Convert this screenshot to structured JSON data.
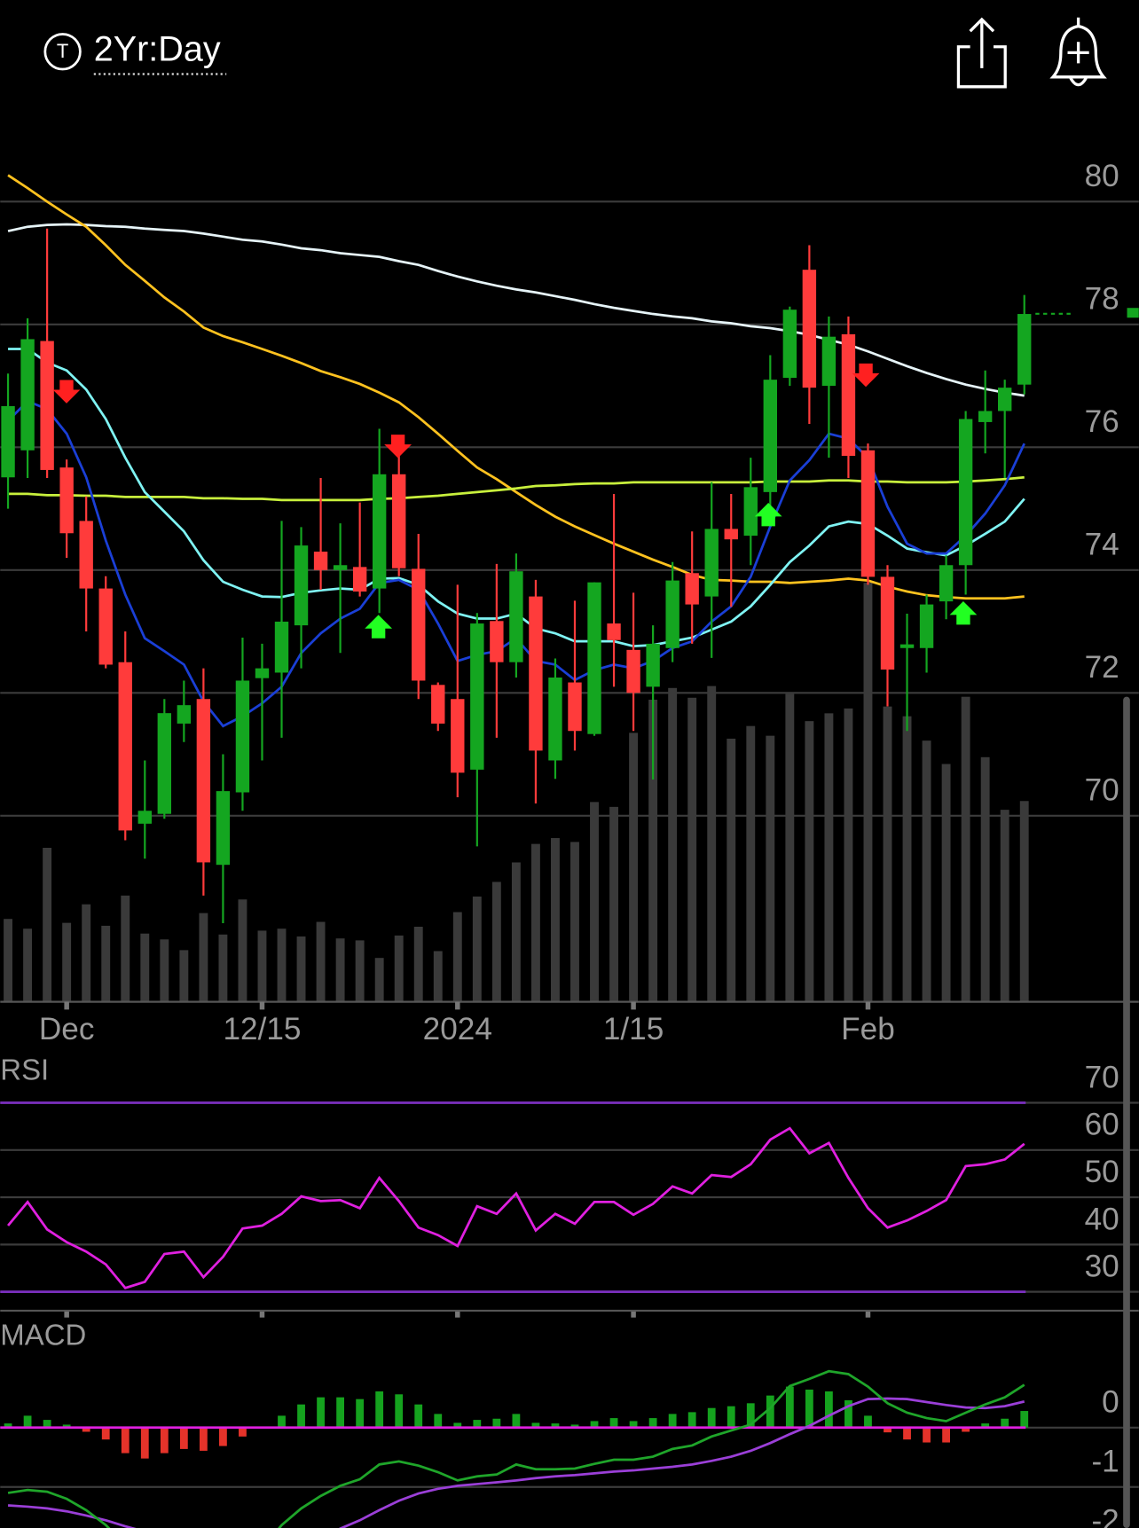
{
  "header": {
    "icon": "T",
    "timeframe": "2Yr:Day"
  },
  "chart_data": [
    {
      "type": "candlestick",
      "categories": [
        null,
        null,
        null,
        "Dec",
        null,
        null,
        null,
        null,
        null,
        null,
        null,
        null,
        null,
        "12/15",
        null,
        null,
        null,
        null,
        null,
        null,
        null,
        null,
        null,
        "2024",
        null,
        null,
        null,
        null,
        null,
        null,
        null,
        null,
        "1/15",
        null,
        null,
        null,
        null,
        null,
        null,
        null,
        null,
        null,
        null,
        null,
        "Feb",
        null,
        null,
        null,
        null,
        null,
        null,
        null,
        null
      ],
      "open": [
        75.51,
        75.95,
        77.73,
        75.67,
        74.8,
        73.7,
        72.5,
        69.87,
        70.03,
        71.5,
        71.9,
        69.2,
        70.38,
        72.24,
        72.33,
        73.1,
        74.3,
        74.0,
        74.05,
        73.7,
        75.56,
        74.02,
        72.13,
        71.9,
        70.75,
        73.17,
        72.5,
        73.57,
        70.9,
        72.17,
        71.33,
        73.13,
        72.7,
        72.1,
        72.73,
        73.95,
        73.57,
        74.67,
        74.56,
        75.27,
        77.13,
        78.89,
        77.0,
        77.84,
        75.95,
        73.89,
        72.73,
        72.73,
        73.49,
        74.08,
        76.41,
        76.59,
        77.02
      ],
      "high": [
        77.2,
        78.1,
        79.56,
        75.8,
        75.2,
        73.9,
        73.0,
        70.9,
        71.9,
        72.2,
        72.4,
        71.0,
        72.9,
        72.8,
        74.8,
        74.7,
        75.5,
        74.76,
        75.1,
        76.3,
        75.98,
        74.59,
        72.17,
        73.76,
        73.3,
        74.1,
        74.27,
        73.84,
        72.56,
        73.5,
        73.8,
        75.24,
        73.63,
        73.1,
        74.13,
        74.63,
        75.43,
        75.24,
        75.83,
        77.5,
        78.29,
        79.29,
        78.13,
        78.13,
        76.06,
        74.08,
        73.29,
        73.6,
        74.24,
        76.59,
        77.25,
        77.1,
        78.48
      ],
      "low": [
        75.0,
        75.5,
        75.5,
        74.2,
        73.0,
        72.4,
        69.6,
        69.3,
        69.95,
        71.2,
        68.7,
        68.25,
        70.08,
        70.9,
        71.27,
        72.4,
        73.68,
        72.65,
        73.57,
        73.3,
        73.9,
        71.9,
        71.38,
        70.3,
        69.5,
        71.27,
        72.25,
        70.2,
        70.6,
        71.06,
        71.3,
        72.1,
        71.38,
        70.59,
        72.5,
        72.8,
        72.57,
        73.4,
        74.08,
        74.9,
        77.0,
        76.38,
        75.83,
        75.5,
        73.76,
        71.78,
        71.38,
        72.33,
        73.2,
        73.6,
        75.9,
        75.5,
        76.86
      ],
      "close": [
        76.67,
        77.76,
        75.63,
        74.6,
        73.7,
        72.46,
        69.76,
        70.08,
        71.67,
        71.8,
        69.24,
        70.4,
        72.2,
        72.4,
        73.16,
        74.4,
        74.0,
        74.08,
        73.65,
        75.56,
        74.03,
        72.2,
        71.5,
        70.7,
        73.13,
        72.5,
        73.98,
        71.06,
        72.25,
        71.38,
        73.8,
        72.86,
        72.0,
        72.8,
        73.83,
        73.44,
        74.67,
        74.5,
        75.35,
        77.1,
        78.24,
        76.97,
        77.8,
        75.86,
        73.89,
        72.38,
        72.79,
        73.44,
        74.08,
        76.46,
        76.59,
        76.97,
        78.17
      ],
      "up_color": "#14a620",
      "down_color": "#ff3b3b",
      "volume": [
        85,
        75,
        158,
        81,
        100,
        78,
        109,
        70,
        64,
        53,
        91,
        69,
        105,
        73,
        75,
        67,
        82,
        65,
        63,
        45,
        68,
        77,
        52,
        92,
        108,
        123,
        143,
        162,
        168,
        164,
        205,
        200,
        276,
        310,
        322,
        312,
        324,
        270,
        283,
        273,
        316,
        288,
        296,
        301,
        430,
        303,
        293,
        268,
        244,
        313,
        251,
        197,
        206
      ],
      "volume_color": "#3a3a3a",
      "series": [
        {
          "color": "#e6f4f8",
          "values": [
            79.52,
            79.59,
            79.62,
            79.63,
            79.62,
            79.6,
            79.59,
            79.56,
            79.54,
            79.52,
            79.48,
            79.43,
            79.38,
            79.35,
            79.3,
            79.24,
            79.21,
            79.16,
            79.13,
            79.1,
            79.03,
            78.97,
            78.87,
            78.78,
            78.7,
            78.63,
            78.57,
            78.52,
            78.46,
            78.4,
            78.33,
            78.27,
            78.22,
            78.17,
            78.13,
            78.1,
            78.05,
            78.02,
            77.97,
            77.94,
            77.89,
            77.83,
            77.75,
            77.67,
            77.56,
            77.44,
            77.32,
            77.21,
            77.11,
            77.02,
            76.95,
            76.89,
            76.84
          ]
        },
        {
          "color": "#ffc21f",
          "values": [
            80.43,
            80.22,
            80.0,
            79.79,
            79.59,
            79.29,
            78.97,
            78.71,
            78.44,
            78.21,
            77.95,
            77.81,
            77.71,
            77.6,
            77.49,
            77.37,
            77.24,
            77.14,
            77.03,
            76.89,
            76.73,
            76.49,
            76.22,
            75.94,
            75.67,
            75.48,
            75.27,
            75.06,
            74.87,
            74.71,
            74.57,
            74.43,
            74.3,
            74.17,
            74.05,
            73.92,
            73.84,
            73.83,
            73.81,
            73.81,
            73.79,
            73.81,
            73.83,
            73.86,
            73.83,
            73.73,
            73.65,
            73.59,
            73.56,
            73.54,
            73.54,
            73.54,
            73.57
          ]
        },
        {
          "color": "#c8f03c",
          "values": [
            75.24,
            75.24,
            75.22,
            75.22,
            75.21,
            75.21,
            75.19,
            75.19,
            75.19,
            75.19,
            75.17,
            75.17,
            75.16,
            75.16,
            75.14,
            75.14,
            75.14,
            75.14,
            75.14,
            75.16,
            75.17,
            75.19,
            75.21,
            75.24,
            75.27,
            75.3,
            75.33,
            75.37,
            75.38,
            75.4,
            75.41,
            75.41,
            75.43,
            75.43,
            75.43,
            75.43,
            75.43,
            75.43,
            75.43,
            75.44,
            75.44,
            75.44,
            75.46,
            75.46,
            75.44,
            75.44,
            75.43,
            75.43,
            75.43,
            75.44,
            75.46,
            75.48,
            75.51
          ]
        },
        {
          "color": "#7ff3f3",
          "values": [
            77.6,
            77.6,
            77.38,
            77.25,
            76.94,
            76.46,
            75.83,
            75.27,
            74.95,
            74.63,
            74.16,
            73.81,
            73.68,
            73.57,
            73.56,
            73.63,
            73.67,
            73.7,
            73.68,
            73.86,
            73.87,
            73.76,
            73.49,
            73.29,
            73.21,
            73.21,
            73.29,
            73.05,
            72.97,
            72.84,
            72.84,
            72.84,
            72.76,
            72.78,
            72.84,
            72.9,
            73.03,
            73.16,
            73.41,
            73.76,
            74.13,
            74.4,
            74.71,
            74.79,
            74.75,
            74.56,
            74.35,
            74.29,
            74.24,
            74.4,
            74.59,
            74.79,
            75.16
          ]
        },
        {
          "color": "#1a3fd6",
          "values": [
            76.43,
            76.75,
            76.62,
            76.22,
            75.51,
            74.48,
            73.6,
            72.89,
            72.68,
            72.46,
            71.86,
            71.46,
            71.62,
            71.83,
            72.1,
            72.65,
            72.97,
            73.21,
            73.37,
            73.79,
            73.84,
            73.68,
            73.13,
            72.52,
            72.62,
            72.68,
            72.89,
            72.52,
            72.46,
            72.21,
            72.37,
            72.46,
            72.4,
            72.52,
            72.73,
            72.84,
            73.16,
            73.41,
            73.89,
            74.71,
            75.46,
            75.79,
            76.22,
            76.14,
            75.83,
            75.03,
            74.43,
            74.27,
            74.27,
            74.56,
            74.92,
            75.38,
            76.06
          ]
        }
      ],
      "ylim": [
        66.97,
        81.22
      ],
      "yticks": [
        70,
        72,
        74,
        76,
        78,
        80
      ],
      "grid": true
    },
    {
      "type": "line",
      "title": "RSI",
      "color": "#e020e0",
      "values": [
        44.0,
        49.0,
        43.2,
        40.5,
        38.5,
        35.8,
        30.8,
        32.1,
        38.0,
        38.5,
        33.1,
        37.4,
        43.4,
        44.0,
        46.5,
        50.2,
        49.2,
        49.4,
        47.7,
        54.1,
        49.2,
        43.6,
        42.0,
        39.7,
        48.1,
        46.5,
        50.8,
        43.0,
        46.5,
        44.4,
        49.0,
        49.0,
        46.3,
        48.6,
        52.3,
        50.8,
        54.7,
        54.3,
        57.0,
        62.2,
        64.6,
        59.3,
        61.5,
        54.1,
        47.7,
        43.6,
        45.1,
        47.1,
        49.4,
        56.6,
        57.0,
        58.0,
        61.3
      ],
      "ylim": [
        26,
        79
      ],
      "yticks": [
        30,
        40,
        50,
        60,
        70
      ],
      "levels": [
        30,
        70
      ],
      "level_color": "#7b2fbf",
      "grid": true
    },
    {
      "type": "macd",
      "title": "MACD",
      "histogram": [
        0.07,
        0.2,
        0.13,
        0.05,
        -0.07,
        -0.2,
        -0.43,
        -0.52,
        -0.43,
        -0.36,
        -0.39,
        -0.31,
        -0.15,
        0,
        0.2,
        0.39,
        0.51,
        0.51,
        0.48,
        0.61,
        0.56,
        0.39,
        0.23,
        0.08,
        0.13,
        0.15,
        0.23,
        0.08,
        0.07,
        0.05,
        0.11,
        0.16,
        0.11,
        0.16,
        0.23,
        0.26,
        0.33,
        0.36,
        0.41,
        0.54,
        0.69,
        0.64,
        0.61,
        0.46,
        0.2,
        -0.08,
        -0.2,
        -0.25,
        -0.25,
        -0.07,
        0.07,
        0.15,
        0.28
      ],
      "macd": [
        -1.1,
        -1.05,
        -1.08,
        -1.2,
        -1.39,
        -1.64,
        -1.97,
        -2.21,
        -2.38,
        -2.46,
        -2.54,
        -2.54,
        -2.38,
        -2.05,
        -1.64,
        -1.36,
        -1.15,
        -0.98,
        -0.87,
        -0.62,
        -0.57,
        -0.64,
        -0.75,
        -0.89,
        -0.82,
        -0.79,
        -0.62,
        -0.7,
        -0.7,
        -0.69,
        -0.61,
        -0.54,
        -0.54,
        -0.49,
        -0.36,
        -0.3,
        -0.15,
        -0.05,
        0.05,
        0.33,
        0.7,
        0.82,
        0.95,
        0.9,
        0.69,
        0.41,
        0.25,
        0.16,
        0.11,
        0.25,
        0.39,
        0.51,
        0.72
      ],
      "signal": [
        -1.31,
        -1.33,
        -1.36,
        -1.41,
        -1.48,
        -1.56,
        -1.66,
        -1.75,
        -1.85,
        -1.95,
        -2.05,
        -2.13,
        -2.18,
        -2.18,
        -2.11,
        -2.0,
        -1.87,
        -1.7,
        -1.56,
        -1.39,
        -1.23,
        -1.11,
        -1.03,
        -0.98,
        -0.95,
        -0.92,
        -0.89,
        -0.85,
        -0.82,
        -0.8,
        -0.77,
        -0.74,
        -0.72,
        -0.69,
        -0.66,
        -0.62,
        -0.56,
        -0.49,
        -0.39,
        -0.26,
        -0.11,
        0.03,
        0.2,
        0.36,
        0.48,
        0.49,
        0.48,
        0.43,
        0.38,
        0.34,
        0.33,
        0.36,
        0.44
      ],
      "up_color": "#15a21e",
      "down_color": "#e5332a",
      "macd_color": "#1fa52a",
      "signal_color": "#9b3fd8",
      "zero_color": "#e020e0",
      "ylim": [
        -1.69,
        1.23
      ],
      "yticks": [
        0,
        -1,
        -2
      ],
      "grid": true
    }
  ]
}
